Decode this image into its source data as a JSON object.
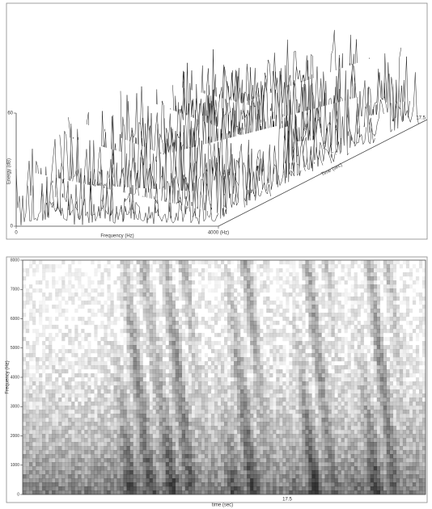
{
  "chart_data": [
    {
      "type": "waterfall",
      "x_label": "Frequency (Hz)",
      "y_label": "Energy (dB)",
      "z_label": "Time (sec)",
      "xlim": [
        0,
        4000
      ],
      "xticks": [
        0,
        {
          "value": 4000,
          "label": "4000 (Hz)"
        }
      ],
      "ylim": [
        0,
        60
      ],
      "yticks": [
        0,
        60
      ],
      "z_end_label": "17.5"
    },
    {
      "type": "spectrogram",
      "x_label": "time (sec)",
      "y_label": "Frequency (Hz)",
      "ylim": [
        0,
        8000
      ],
      "yticks": [
        0,
        1000,
        2000,
        3000,
        4000,
        5000,
        6000,
        7000,
        8000
      ],
      "annotation": "17.5"
    }
  ]
}
